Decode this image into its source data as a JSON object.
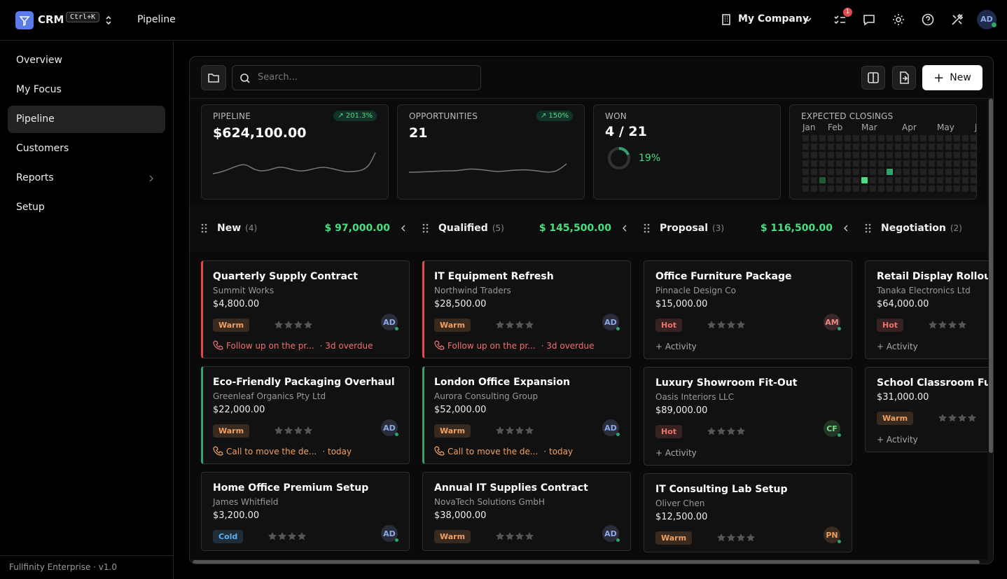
{
  "header": {
    "app": "CRM",
    "shortcut": "Ctrl+K",
    "page": "Pipeline",
    "company": "My Company",
    "notifications": "1",
    "avatar": "AD"
  },
  "sidebar": {
    "active": 2,
    "nav": [
      {
        "label": "Overview"
      },
      {
        "label": "My Focus"
      },
      {
        "label": "Pipeline"
      },
      {
        "label": "Customers"
      },
      {
        "label": "Reports",
        "submenu": true
      },
      {
        "label": "Setup"
      }
    ],
    "footer": "Fullfinity Enterprise · v1.0"
  },
  "toolbar": {
    "search_placeholder": "Search...",
    "new_button": "New"
  },
  "kpis": {
    "pipeline": {
      "label": "PIPELINE",
      "value": "$624,100.00",
      "change": "201.3%"
    },
    "opportunities": {
      "label": "OPPORTUNITIES",
      "value": "21",
      "change": "150%"
    },
    "won": {
      "label": "WON",
      "value": "4 / 21",
      "percent": "19%"
    },
    "closings": {
      "label": "EXPECTED CLOSINGS",
      "months": [
        "Jan",
        "Feb",
        "Mar",
        "Apr",
        "May",
        "J"
      ]
    }
  },
  "columns": [
    {
      "name": "New",
      "count": "(4)",
      "total": "$ 97,000.00",
      "cards": [
        {
          "title": "Quarterly Supply Contract",
          "company": "Summit Works",
          "amount": "$4,800.00",
          "tag": "Warm",
          "tag_color": "#f0a060",
          "avatar": "AD",
          "avatar_color": "#8ea8e8",
          "accent": "#e5484d",
          "activity": "Follow up on the pr...",
          "due": "· 3d overdue",
          "activity_color": "#f07070"
        },
        {
          "title": "Eco-Friendly Packaging Overhaul",
          "company": "Greenleaf Organics Pty Ltd",
          "amount": "$22,000.00",
          "tag": "Warm",
          "tag_color": "#f0a060",
          "avatar": "AD",
          "avatar_color": "#8ea8e8",
          "accent": "#30a46c",
          "activity": "Call to move the de...",
          "due": "· today",
          "activity_color": "#f0a060"
        },
        {
          "title": "Home Office Premium Setup",
          "company": "James Whitfield",
          "amount": "$3,200.00",
          "tag": "Cold",
          "tag_color": "#60b0f0",
          "avatar": "AD",
          "avatar_color": "#8ea8e8"
        }
      ]
    },
    {
      "name": "Qualified",
      "count": "(5)",
      "total": "$ 145,500.00",
      "cards": [
        {
          "title": "IT Equipment Refresh",
          "company": "Northwind Traders",
          "amount": "$28,500.00",
          "tag": "Warm",
          "tag_color": "#f0a060",
          "avatar": "AD",
          "avatar_color": "#8ea8e8",
          "accent": "#e5484d",
          "activity": "Follow up on the pr...",
          "due": "· 3d overdue",
          "activity_color": "#f07070"
        },
        {
          "title": "London Office Expansion",
          "company": "Aurora Consulting Group",
          "amount": "$52,000.00",
          "tag": "Warm",
          "tag_color": "#f0a060",
          "avatar": "AD",
          "avatar_color": "#8ea8e8",
          "accent": "#30a46c",
          "activity": "Call to move the de...",
          "due": "· today",
          "activity_color": "#f0a060"
        },
        {
          "title": "Annual IT Supplies Contract",
          "company": "NovaTech Solutions GmbH",
          "amount": "$38,000.00",
          "tag": "Warm",
          "tag_color": "#f0a060",
          "avatar": "AD",
          "avatar_color": "#8ea8e8"
        }
      ]
    },
    {
      "name": "Proposal",
      "count": "(3)",
      "total": "$ 116,500.00",
      "cards": [
        {
          "title": "Office Furniture Package",
          "company": "Pinnacle Design Co",
          "amount": "$15,000.00",
          "tag": "Hot",
          "tag_color": "#f07070",
          "avatar": "AM",
          "avatar_color": "#ee8888",
          "action": "+ Activity"
        },
        {
          "title": "Luxury Showroom Fit-Out",
          "company": "Oasis Interiors LLC",
          "amount": "$89,000.00",
          "tag": "Hot",
          "tag_color": "#f07070",
          "avatar": "CF",
          "avatar_color": "#77dd88",
          "action": "+ Activity"
        },
        {
          "title": "IT Consulting Lab Setup",
          "company": "Oliver Chen",
          "amount": "$12,500.00",
          "tag": "Warm",
          "tag_color": "#f0a060",
          "avatar": "PN",
          "avatar_color": "#e9a060"
        }
      ]
    },
    {
      "name": "Negotiation",
      "count": "(2)",
      "cards": [
        {
          "title": "Retail Display Rollout",
          "company": "Tanaka Electronics Ltd",
          "amount": "$64,000.00",
          "tag": "Hot",
          "tag_color": "#f07070",
          "action": "+ Activity"
        },
        {
          "title": "School Classroom Furnit",
          "amount": "$31,000.00",
          "tag": "Warm",
          "tag_color": "#f0a060",
          "action": "+ Activity"
        }
      ]
    }
  ]
}
